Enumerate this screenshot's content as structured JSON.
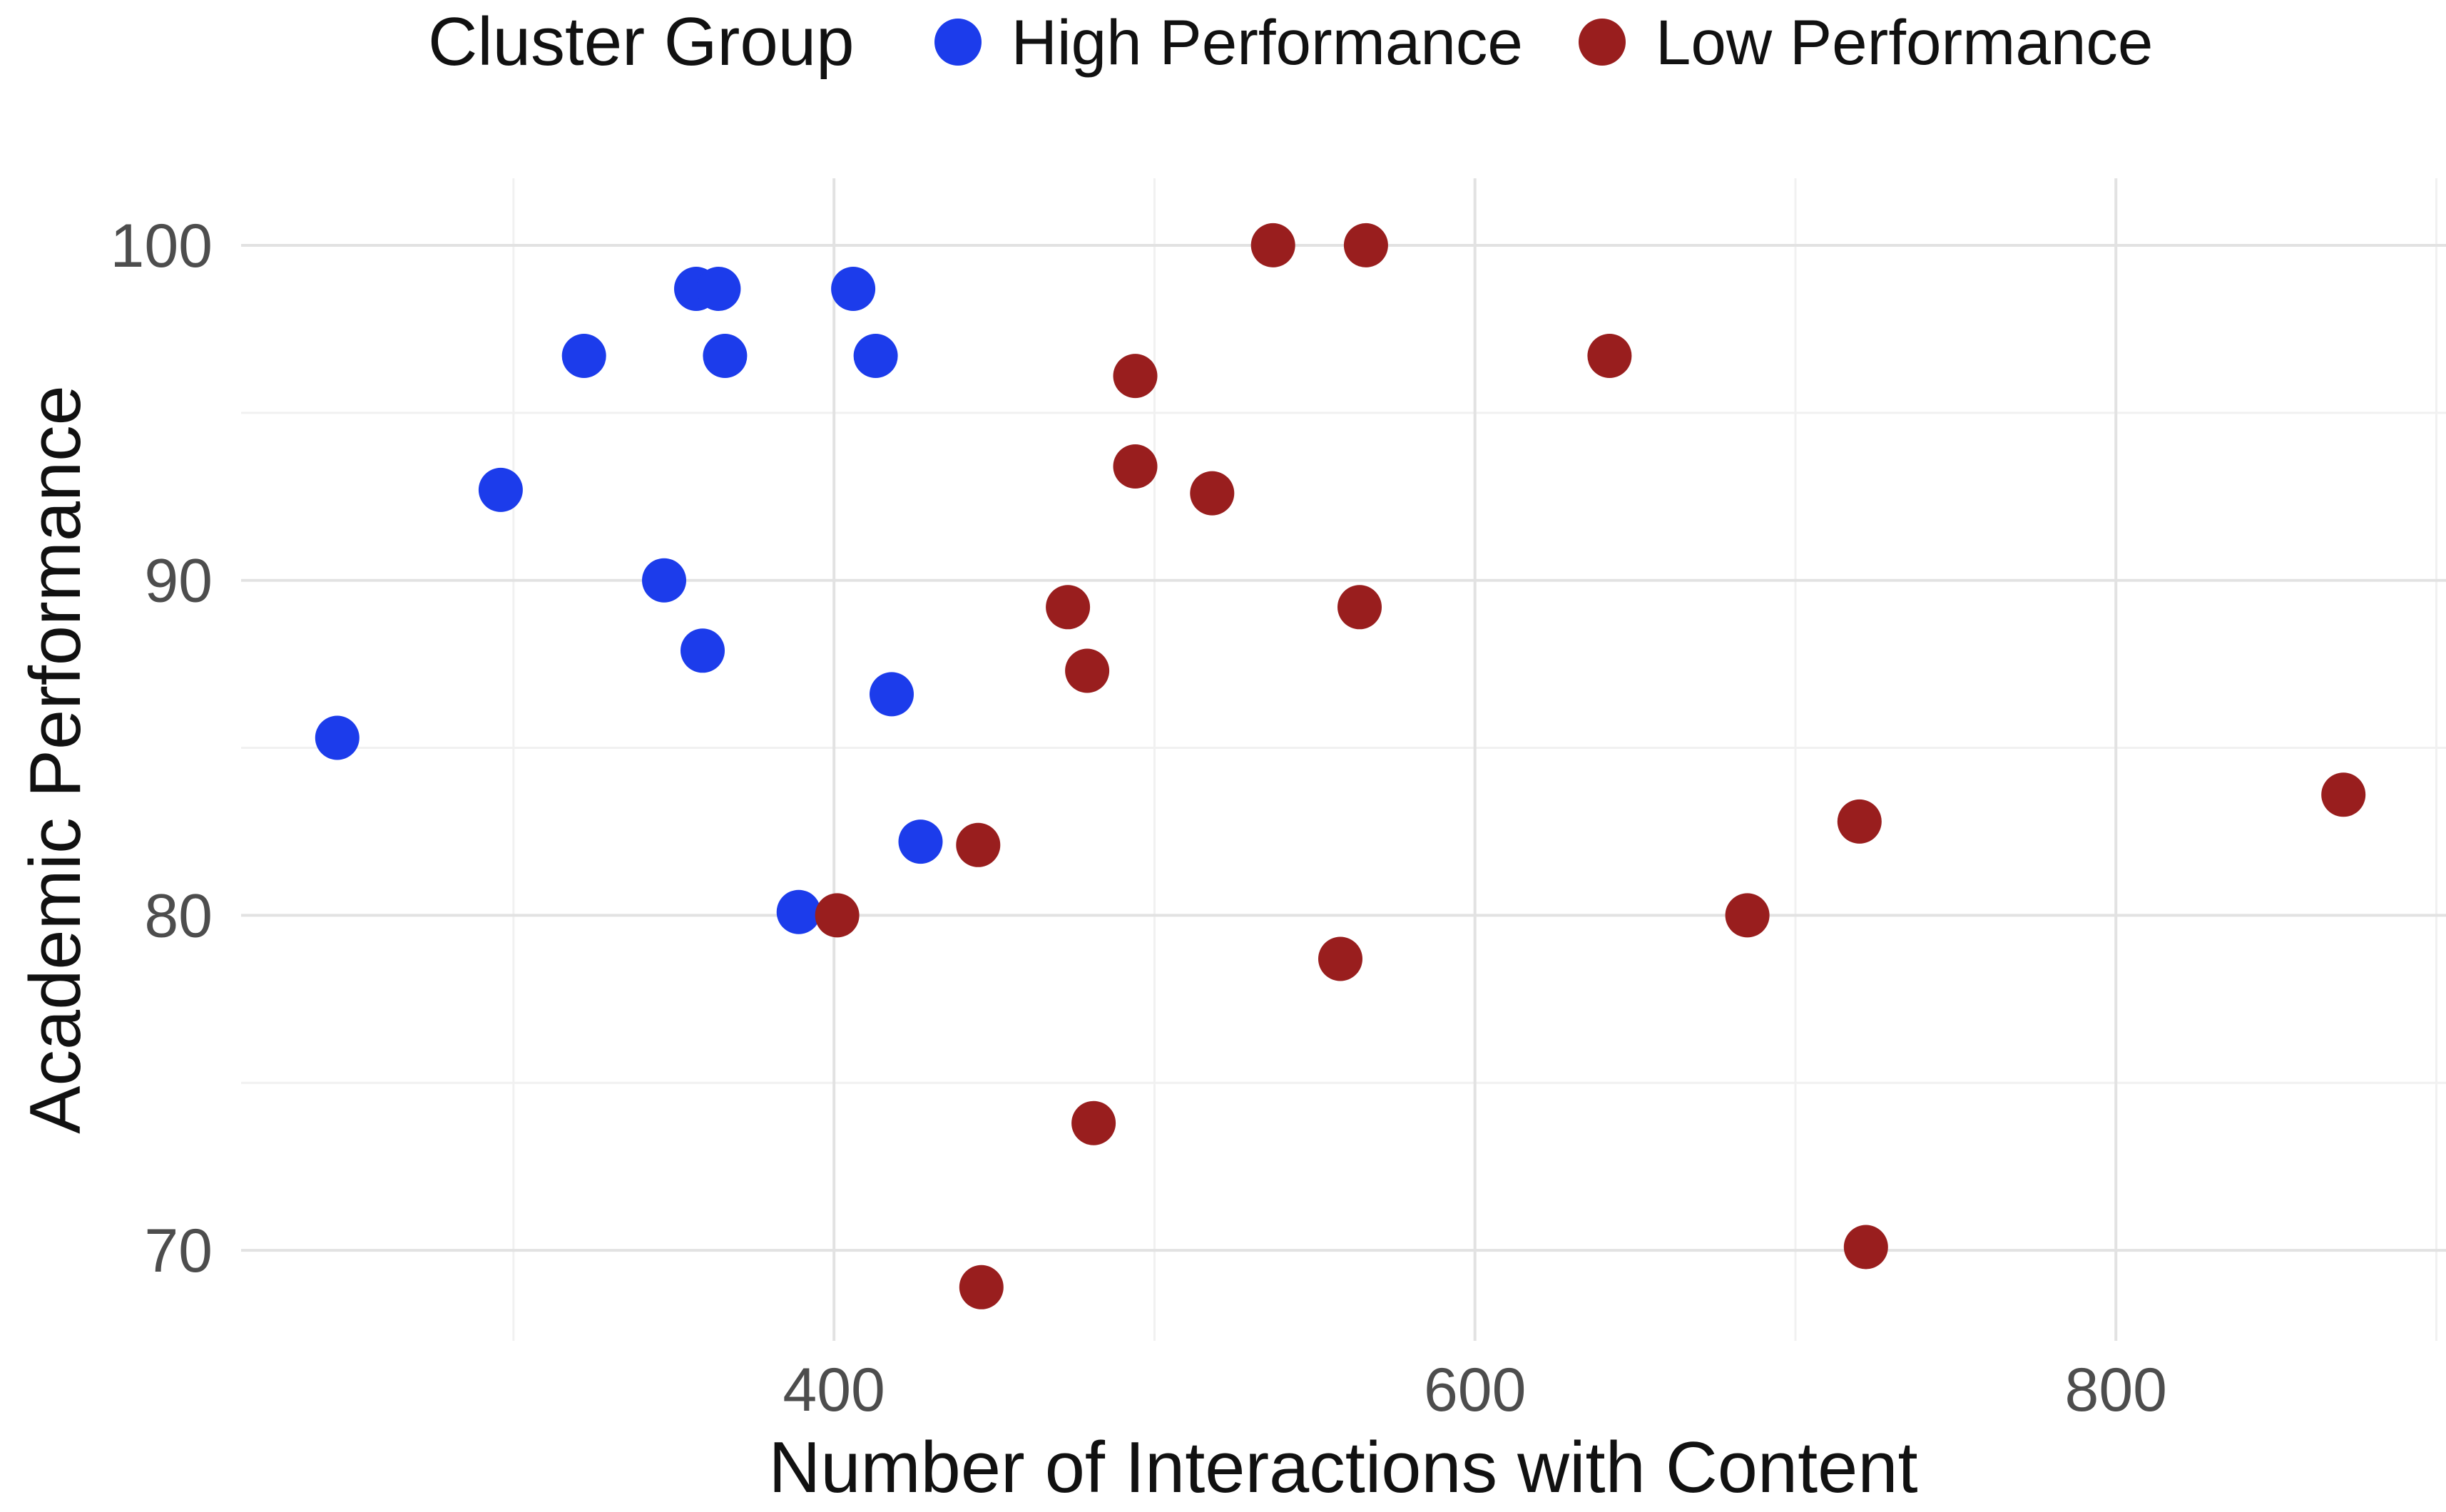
{
  "figure": {
    "background": "#ffffff"
  },
  "legend": {
    "title": "Cluster Group",
    "items": [
      {
        "label": "High Performance",
        "color": "#1C3CEB"
      },
      {
        "label": "Low Performance",
        "color": "#991E1E"
      }
    ]
  },
  "chart_data": {
    "type": "scatter",
    "xlabel": "Number of Interactions with Content",
    "ylabel": "Academic Performance",
    "xlim": [
      215,
      903
    ],
    "ylim": [
      67.3,
      102
    ],
    "x_ticks": [
      400,
      600,
      800
    ],
    "x_minor_ticks": [
      300,
      500,
      700,
      900
    ],
    "y_ticks": [
      70,
      80,
      90,
      100
    ],
    "y_minor_ticks": [
      75,
      85,
      95
    ],
    "grid": "major+minor",
    "legend_position": "top",
    "series": [
      {
        "name": "High Performance",
        "color": "#1C3CEB",
        "points": [
          [
            245,
            85.3
          ],
          [
            296,
            92.7
          ],
          [
            322,
            96.7
          ],
          [
            347,
            90.0
          ],
          [
            357,
            98.7
          ],
          [
            359,
            87.9
          ],
          [
            364,
            98.7
          ],
          [
            366,
            96.7
          ],
          [
            389,
            80.1
          ],
          [
            406,
            98.7
          ],
          [
            413,
            96.7
          ],
          [
            418,
            86.6
          ],
          [
            427,
            82.2
          ]
        ]
      },
      {
        "name": "Low Performance",
        "color": "#991E1E",
        "points": [
          [
            401,
            80.0
          ],
          [
            445,
            82.1
          ],
          [
            446,
            68.9
          ],
          [
            473,
            89.2
          ],
          [
            479,
            87.3
          ],
          [
            481,
            73.8
          ],
          [
            494,
            93.4
          ],
          [
            494,
            96.1
          ],
          [
            518,
            92.6
          ],
          [
            537,
            100.0
          ],
          [
            558,
            78.7
          ],
          [
            564,
            89.2
          ],
          [
            566,
            100.0
          ],
          [
            642,
            96.7
          ],
          [
            685,
            80.0
          ],
          [
            720,
            82.8
          ],
          [
            722,
            70.1
          ],
          [
            871,
            83.6
          ]
        ]
      }
    ]
  },
  "colors": {
    "grid_major": "#E2E2E2",
    "grid_minor": "#F1F1F1",
    "tick_text": "#4D4D4D",
    "title_text": "#111111"
  }
}
